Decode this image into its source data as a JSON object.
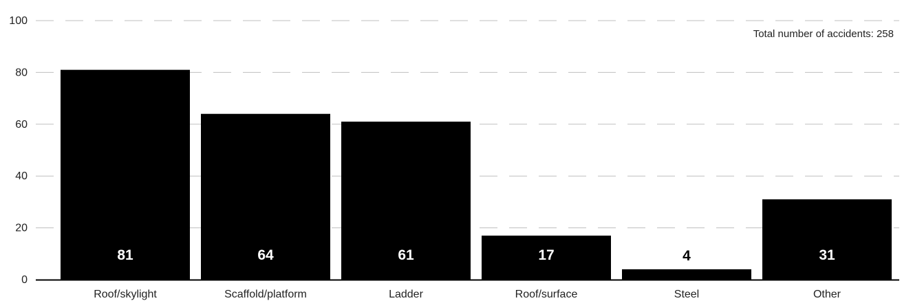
{
  "chart_data": {
    "type": "bar",
    "title": "",
    "xlabel": "",
    "ylabel": "",
    "categories": [
      "Roof/skylight",
      "Scaffold/platform",
      "Ladder",
      "Roof/surface",
      "Steel",
      "Other"
    ],
    "values": [
      81,
      64,
      61,
      17,
      4,
      31
    ],
    "value_labels": [
      "81",
      "64",
      "61",
      "17",
      "4",
      "31"
    ],
    "ylim": [
      0,
      100
    ],
    "yticks": [
      0,
      20,
      40,
      60,
      80,
      100
    ],
    "ytick_labels": [
      "0",
      "20",
      "40",
      "60",
      "80",
      "100"
    ],
    "grid": "horizontal dashed",
    "annotation": "Total number of accidents: 258",
    "annotation_position": "top-right",
    "colors": {
      "bar": "#000000",
      "label_inside": "#ffffff",
      "label_outside": "#000000",
      "grid": "#bfbfbf",
      "axis": "#000000"
    }
  }
}
